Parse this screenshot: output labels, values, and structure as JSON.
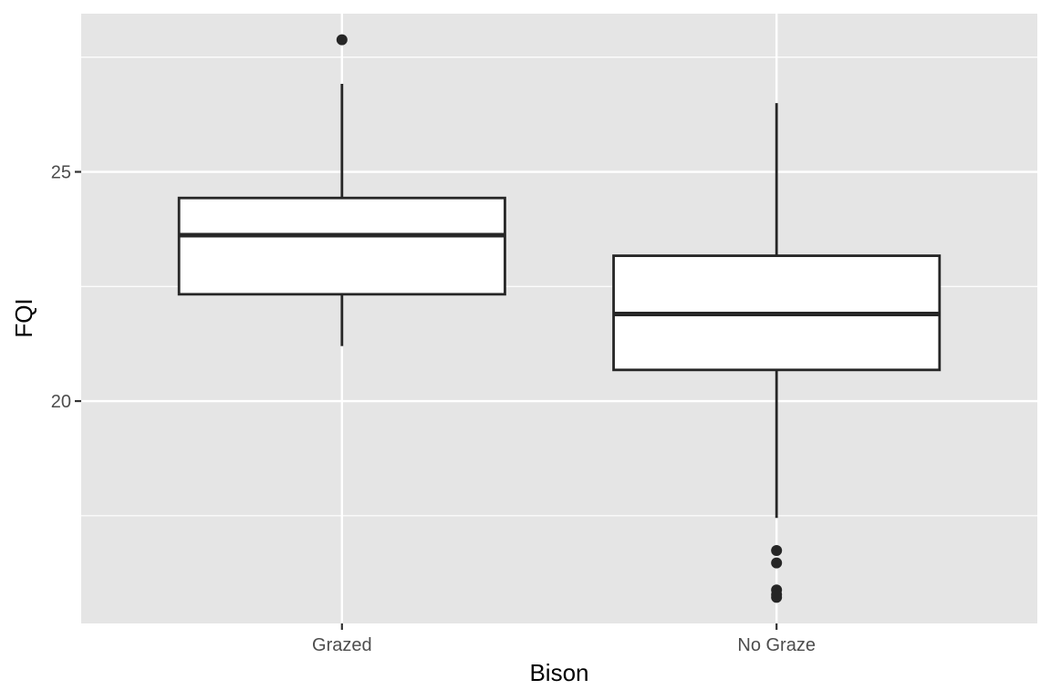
{
  "chart_data": {
    "type": "boxplot",
    "title": "",
    "xlabel": "Bison",
    "ylabel": "FQI",
    "categories": [
      "Grazed",
      "No Graze"
    ],
    "ylim": [
      15.15,
      28.45
    ],
    "y_ticks_labeled": [
      20,
      25
    ],
    "y_gridlines_minor": [
      17.5,
      22.5,
      27.5
    ],
    "grid": true,
    "legend": "none",
    "boxes": [
      {
        "category": "Grazed",
        "whisker_low": 21.2,
        "q1": 22.33,
        "median": 23.62,
        "q3": 24.43,
        "whisker_high": 26.92,
        "outliers": [
          27.88
        ]
      },
      {
        "category": "No Graze",
        "whisker_low": 17.45,
        "q1": 20.68,
        "median": 21.9,
        "q3": 23.17,
        "whisker_high": 26.5,
        "outliers": [
          16.74,
          16.47,
          15.88,
          15.78,
          15.72
        ]
      }
    ],
    "colors": {
      "panel": "#e5e5e5",
      "grid": "#ffffff",
      "box_fill": "#ffffff",
      "box_line": "#262626",
      "tick_text": "#4d4d4d"
    }
  }
}
